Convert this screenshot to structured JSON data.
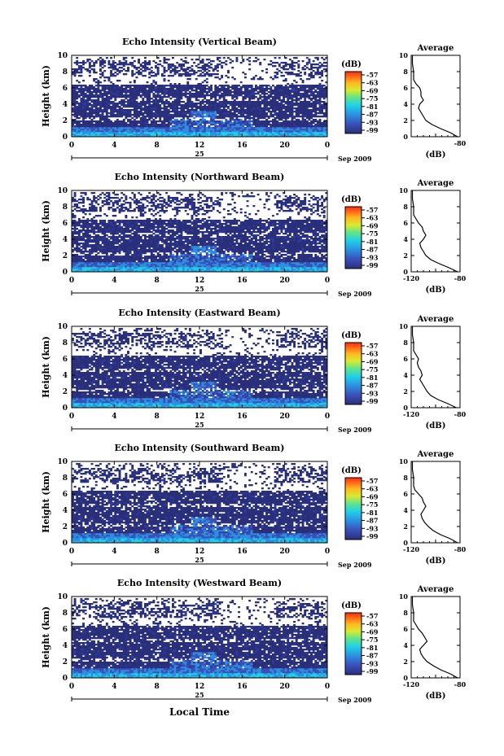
{
  "figure": {
    "xlabel": "Local Time",
    "date_day": "25",
    "date_month": "Sep 2009",
    "colorbar_unit": "(dB)",
    "avg_title": "Average",
    "avg_unit": "(dB)"
  },
  "chart_data": [
    {
      "type": "heatmap",
      "title": "Echo Intensity (Vertical Beam)",
      "ylabel": "Height (km)",
      "xlim": [
        0,
        24
      ],
      "ylim": [
        0,
        10
      ],
      "x_ticks": [
        "0",
        "4",
        "8",
        "12",
        "16",
        "20",
        "0"
      ],
      "y_ticks": [
        "0",
        "2",
        "4",
        "6",
        "8",
        "10"
      ],
      "colorbar_ticks": [
        "-57",
        "-63",
        "-69",
        "-75",
        "-81",
        "-87",
        "-93",
        "-99"
      ],
      "avg_x_ticks": [
        "",
        "-80"
      ],
      "profile": {
        "ylim": [
          0,
          10
        ],
        "xlim": [
          -120,
          -80
        ],
        "heights": [
          0,
          0.5,
          1,
          1.5,
          2,
          2.5,
          3,
          3.5,
          4,
          4.5,
          5,
          5.5,
          6,
          6.5,
          7,
          8,
          9,
          10
        ],
        "values": [
          -82,
          -88,
          -96,
          -103,
          -108,
          -110,
          -112,
          -114,
          -113,
          -110,
          -112,
          -112,
          -113,
          -116,
          -118,
          -118,
          -119,
          -119
        ]
      }
    },
    {
      "type": "heatmap",
      "title": "Echo Intensity (Northward Beam)",
      "ylabel": "Height (km)",
      "xlim": [
        0,
        24
      ],
      "ylim": [
        0,
        10
      ],
      "x_ticks": [
        "0",
        "4",
        "8",
        "12",
        "16",
        "20",
        "0"
      ],
      "y_ticks": [
        "0",
        "2",
        "4",
        "6",
        "8",
        "10"
      ],
      "colorbar_ticks": [
        "-57",
        "-63",
        "-69",
        "-75",
        "-81",
        "-87",
        "-93",
        "-99"
      ],
      "avg_x_ticks": [
        "-120",
        "-80"
      ],
      "profile": {
        "ylim": [
          0,
          10
        ],
        "xlim": [
          -120,
          -80
        ],
        "heights": [
          0,
          0.5,
          1,
          1.5,
          2,
          2.5,
          3,
          3.5,
          4,
          4.5,
          5,
          5.5,
          6,
          6.5,
          7,
          8,
          9,
          10
        ],
        "values": [
          -82,
          -89,
          -97,
          -104,
          -108,
          -110,
          -112,
          -113,
          -110,
          -108,
          -110,
          -111,
          -114,
          -116,
          -118,
          -118,
          -119,
          -119
        ]
      }
    },
    {
      "type": "heatmap",
      "title": "Echo Intensity (Eastward Beam)",
      "ylabel": "Height (km)",
      "xlim": [
        0,
        24
      ],
      "ylim": [
        0,
        10
      ],
      "x_ticks": [
        "0",
        "4",
        "8",
        "12",
        "16",
        "20",
        "0"
      ],
      "y_ticks": [
        "0",
        "2",
        "4",
        "6",
        "8",
        "10"
      ],
      "colorbar_ticks": [
        "-57",
        "-63",
        "-69",
        "-75",
        "-81",
        "-87",
        "-93",
        "-99"
      ],
      "avg_x_ticks": [
        "-120",
        "-80"
      ],
      "profile": {
        "ylim": [
          0,
          10
        ],
        "xlim": [
          -120,
          -80
        ],
        "heights": [
          0,
          0.5,
          1,
          1.5,
          2,
          2.5,
          3,
          3.5,
          4,
          4.5,
          5,
          5.5,
          6,
          6.5,
          7,
          8,
          9,
          10
        ],
        "values": [
          -83,
          -90,
          -98,
          -104,
          -107,
          -109,
          -111,
          -113,
          -111,
          -112,
          -114,
          -115,
          -114,
          -116,
          -118,
          -118,
          -119,
          -119
        ]
      }
    },
    {
      "type": "heatmap",
      "title": "Echo Intensity (Southward Beam)",
      "ylabel": "Height (km)",
      "xlim": [
        0,
        24
      ],
      "ylim": [
        0,
        10
      ],
      "x_ticks": [
        "0",
        "4",
        "8",
        "12",
        "16",
        "20",
        "0"
      ],
      "y_ticks": [
        "0",
        "2",
        "4",
        "6",
        "8",
        "10"
      ],
      "colorbar_ticks": [
        "-57",
        "-63",
        "-69",
        "-75",
        "-81",
        "-87",
        "-93",
        "-99"
      ],
      "avg_x_ticks": [
        "-120",
        "-80"
      ],
      "profile": {
        "ylim": [
          0,
          10
        ],
        "xlim": [
          -120,
          -80
        ],
        "heights": [
          0,
          0.5,
          1,
          1.5,
          2,
          2.5,
          3,
          3.5,
          4,
          4.5,
          5,
          5.5,
          6,
          6.5,
          7,
          8,
          9,
          10
        ],
        "values": [
          -82,
          -88,
          -96,
          -102,
          -106,
          -109,
          -111,
          -112,
          -110,
          -108,
          -110,
          -111,
          -114,
          -117,
          -118,
          -118,
          -119,
          -119
        ]
      }
    },
    {
      "type": "heatmap",
      "title": "Echo Intensity (Westward Beam)",
      "ylabel": "Height (km)",
      "xlim": [
        0,
        24
      ],
      "ylim": [
        0,
        10
      ],
      "x_ticks": [
        "0",
        "4",
        "8",
        "12",
        "16",
        "20",
        "0"
      ],
      "y_ticks": [
        "0",
        "2",
        "4",
        "6",
        "8",
        "10"
      ],
      "colorbar_ticks": [
        "-57",
        "-63",
        "-69",
        "-75",
        "-81",
        "-87",
        "-93",
        "-99"
      ],
      "avg_x_ticks": [
        "-120",
        "-80"
      ],
      "profile": {
        "ylim": [
          0,
          10
        ],
        "xlim": [
          -120,
          -80
        ],
        "heights": [
          0,
          0.5,
          1,
          1.5,
          2,
          2.5,
          3,
          3.5,
          4,
          4.5,
          5,
          5.5,
          6,
          6.5,
          7,
          8,
          9,
          10
        ],
        "values": [
          -82,
          -88,
          -96,
          -102,
          -107,
          -110,
          -112,
          -113,
          -110,
          -107,
          -109,
          -111,
          -114,
          -116,
          -118,
          -118,
          -119,
          -119
        ]
      }
    }
  ]
}
